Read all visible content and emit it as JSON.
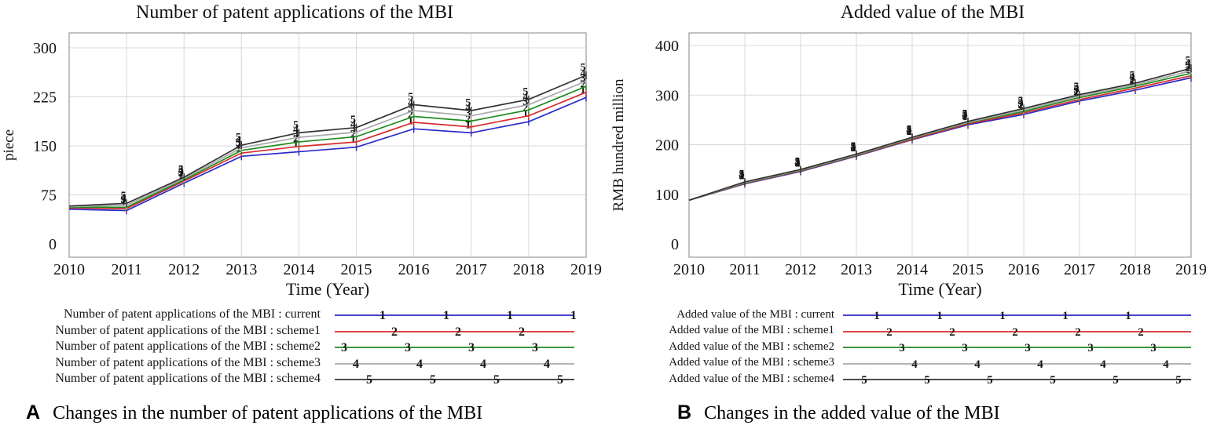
{
  "figure": {
    "captions": [
      {
        "letter": "A",
        "text": "Changes in the number of patent applications of the MBI"
      },
      {
        "letter": "B",
        "text": "Changes in the added value of the MBI"
      }
    ]
  },
  "chart_data": [
    {
      "type": "line",
      "title": "Number of patent applications of the MBI",
      "xlabel": "Time (Year)",
      "ylabel": "piece",
      "x": [
        2010,
        2011,
        2012,
        2013,
        2014,
        2015,
        2016,
        2017,
        2018,
        2019
      ],
      "ylim": [
        0,
        300
      ],
      "yticks": [
        0,
        75,
        150,
        225,
        300
      ],
      "grid": true,
      "legend_position": "below",
      "series": [
        {
          "name": "current",
          "legend_label": "Number of patent applications of the MBI : current",
          "marker": "1",
          "color": "#2a2ac8",
          "values": [
            53,
            51,
            93,
            134,
            141,
            148,
            176,
            170,
            187,
            224
          ]
        },
        {
          "name": "scheme1",
          "legend_label": "Number of patent applications of the MBI : scheme1",
          "marker": "2",
          "color": "#d92b2b",
          "values": [
            55,
            54,
            96,
            139,
            149,
            156,
            186,
            179,
            196,
            232
          ]
        },
        {
          "name": "scheme2",
          "legend_label": "Number of patent applications of the MBI : scheme2",
          "marker": "3",
          "color": "#1e8c1e",
          "values": [
            56,
            56,
            98,
            143,
            156,
            164,
            195,
            188,
            205,
            241
          ]
        },
        {
          "name": "scheme3",
          "legend_label": "Number of patent applications of the MBI : scheme3",
          "marker": "4",
          "color": "#a9a9a9",
          "values": [
            57,
            59,
            100,
            147,
            163,
            171,
            204,
            196,
            213,
            249
          ]
        },
        {
          "name": "scheme4",
          "legend_label": "Number of patent applications of the MBI : scheme4",
          "marker": "5",
          "color": "#323232",
          "values": [
            58,
            62,
            102,
            151,
            170,
            178,
            213,
            204,
            221,
            258
          ]
        }
      ]
    },
    {
      "type": "line",
      "title": "Added value of the MBI",
      "xlabel": "Time (Year)",
      "ylabel": "RMB hundred million",
      "x": [
        2010,
        2011,
        2012,
        2013,
        2014,
        2015,
        2016,
        2017,
        2018,
        2019
      ],
      "ylim": [
        0,
        400
      ],
      "yticks": [
        0,
        100,
        200,
        300,
        400
      ],
      "grid": true,
      "legend_position": "below",
      "series": [
        {
          "name": "current",
          "legend_label": "Added value of the MBI : current",
          "marker": "1",
          "color": "#2a2ac8",
          "values": [
            88,
            121,
            146,
            177,
            210,
            240,
            261,
            288,
            310,
            335
          ]
        },
        {
          "name": "scheme1",
          "legend_label": "Added value of the MBI : scheme1",
          "marker": "2",
          "color": "#d92b2b",
          "values": [
            88,
            122,
            147,
            178,
            211,
            242,
            264,
            291,
            314,
            339
          ]
        },
        {
          "name": "scheme2",
          "legend_label": "Added value of the MBI : scheme2",
          "marker": "3",
          "color": "#1e8c1e",
          "values": [
            88,
            123,
            148,
            179,
            213,
            244,
            267,
            295,
            318,
            344
          ]
        },
        {
          "name": "scheme3",
          "legend_label": "Added value of the MBI : scheme3",
          "marker": "4",
          "color": "#a9a9a9",
          "values": [
            88,
            124,
            149,
            180,
            214,
            245,
            270,
            298,
            321,
            349
          ]
        },
        {
          "name": "scheme4",
          "legend_label": "Added value of the MBI : scheme4",
          "marker": "5",
          "color": "#323232",
          "values": [
            88,
            125,
            150,
            181,
            215,
            247,
            273,
            301,
            324,
            354
          ]
        }
      ]
    }
  ]
}
